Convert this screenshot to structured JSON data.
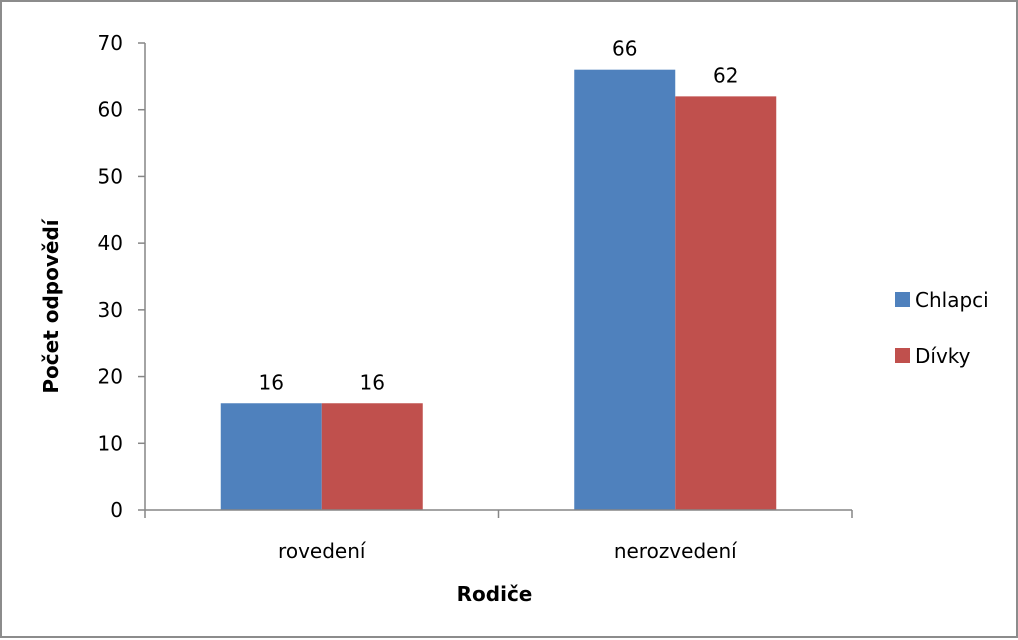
{
  "chart_data": {
    "type": "bar",
    "categories": [
      "rovedení",
      "nerozvedení"
    ],
    "series": [
      {
        "name": "Chlapci",
        "color": "#4f81bd",
        "values": [
          16,
          66
        ]
      },
      {
        "name": "Dívky",
        "color": "#c0504d",
        "values": [
          16,
          62
        ]
      }
    ],
    "xlabel": "Rodiče",
    "ylabel": "Počet odpovědí",
    "ylim": [
      0,
      70
    ],
    "yticks": [
      0,
      10,
      20,
      30,
      40,
      50,
      60,
      70
    ],
    "grid": false,
    "legend_position": "right",
    "data_labels": true
  }
}
